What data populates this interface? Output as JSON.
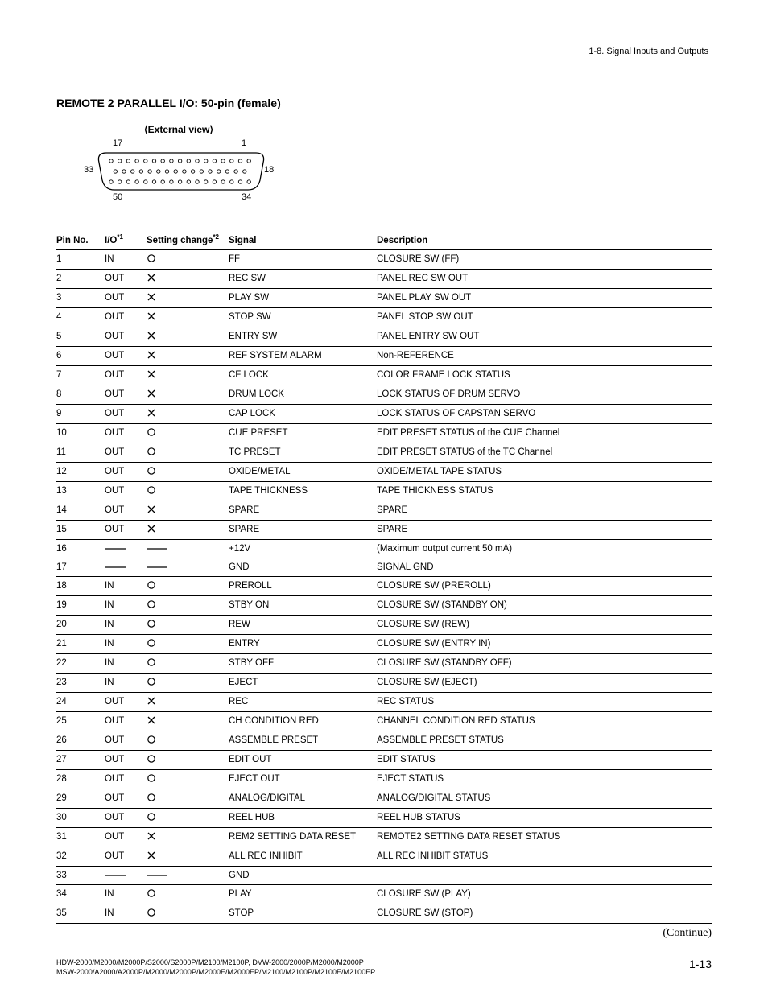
{
  "header": {
    "section": "1-8. Signal Inputs and Outputs"
  },
  "title": "REMOTE 2 PARALLEL I/O: 50-pin (female)",
  "diagram": {
    "label": "External view",
    "pin_labels": {
      "tl": "17",
      "tr": "1",
      "ml": "33",
      "mr": "18",
      "bl": "50",
      "br": "34"
    }
  },
  "table": {
    "columns": {
      "pin": "Pin No.",
      "io": "I/O",
      "io_sup": "*1",
      "sc": "Setting change",
      "sc_sup": "*2",
      "signal": "Signal",
      "desc": "Description"
    },
    "marks": {
      "circle": "a",
      "cross": "x",
      "dash": "—"
    },
    "rows": [
      {
        "pin": "1",
        "io": "IN",
        "sc": "a",
        "signal": "FF",
        "desc": "CLOSURE SW (FF)"
      },
      {
        "pin": "2",
        "io": "OUT",
        "sc": "x",
        "signal": "REC SW",
        "desc": "PANEL REC SW OUT"
      },
      {
        "pin": "3",
        "io": "OUT",
        "sc": "x",
        "signal": "PLAY SW",
        "desc": "PANEL PLAY SW OUT"
      },
      {
        "pin": "4",
        "io": "OUT",
        "sc": "x",
        "signal": "STOP SW",
        "desc": "PANEL STOP SW OUT"
      },
      {
        "pin": "5",
        "io": "OUT",
        "sc": "x",
        "signal": "ENTRY SW",
        "desc": "PANEL ENTRY SW OUT"
      },
      {
        "pin": "6",
        "io": "OUT",
        "sc": "x",
        "signal": "REF SYSTEM ALARM",
        "desc": "Non-REFERENCE"
      },
      {
        "pin": "7",
        "io": "OUT",
        "sc": "x",
        "signal": "CF LOCK",
        "desc": "COLOR FRAME LOCK STATUS"
      },
      {
        "pin": "8",
        "io": "OUT",
        "sc": "x",
        "signal": "DRUM LOCK",
        "desc": "LOCK STATUS OF DRUM SERVO"
      },
      {
        "pin": "9",
        "io": "OUT",
        "sc": "x",
        "signal": "CAP LOCK",
        "desc": "LOCK STATUS OF CAPSTAN SERVO"
      },
      {
        "pin": "10",
        "io": "OUT",
        "sc": "a",
        "signal": "CUE PRESET",
        "desc": "EDIT PRESET STATUS of the CUE Channel"
      },
      {
        "pin": "11",
        "io": "OUT",
        "sc": "a",
        "signal": "TC PRESET",
        "desc": "EDIT PRESET STATUS of the TC Channel"
      },
      {
        "pin": "12",
        "io": "OUT",
        "sc": "a",
        "signal": "OXIDE/METAL",
        "desc": "OXIDE/METAL TAPE STATUS"
      },
      {
        "pin": "13",
        "io": "OUT",
        "sc": "a",
        "signal": "TAPE THICKNESS",
        "desc": "TAPE THICKNESS STATUS"
      },
      {
        "pin": "14",
        "io": "OUT",
        "sc": "x",
        "signal": "SPARE",
        "desc": "SPARE"
      },
      {
        "pin": "15",
        "io": "OUT",
        "sc": "x",
        "signal": "SPARE",
        "desc": "SPARE"
      },
      {
        "pin": "16",
        "io": "—",
        "sc": "—",
        "signal": "+12V",
        "desc": "(Maximum output current 50 mA)"
      },
      {
        "pin": "17",
        "io": "—",
        "sc": "—",
        "signal": "GND",
        "desc": "SIGNAL GND"
      },
      {
        "pin": "18",
        "io": "IN",
        "sc": "a",
        "signal": "PREROLL",
        "desc": "CLOSURE SW (PREROLL)"
      },
      {
        "pin": "19",
        "io": "IN",
        "sc": "a",
        "signal": "STBY ON",
        "desc": "CLOSURE SW (STANDBY ON)"
      },
      {
        "pin": "20",
        "io": "IN",
        "sc": "a",
        "signal": "REW",
        "desc": "CLOSURE SW (REW)"
      },
      {
        "pin": "21",
        "io": "IN",
        "sc": "a",
        "signal": "ENTRY",
        "desc": "CLOSURE SW (ENTRY IN)"
      },
      {
        "pin": "22",
        "io": "IN",
        "sc": "a",
        "signal": "STBY OFF",
        "desc": "CLOSURE SW (STANDBY OFF)"
      },
      {
        "pin": "23",
        "io": "IN",
        "sc": "a",
        "signal": "EJECT",
        "desc": "CLOSURE SW (EJECT)"
      },
      {
        "pin": "24",
        "io": "OUT",
        "sc": "x",
        "signal": "REC",
        "desc": "REC STATUS"
      },
      {
        "pin": "25",
        "io": "OUT",
        "sc": "x",
        "signal": "CH CONDITION RED",
        "desc": "CHANNEL CONDITION RED STATUS"
      },
      {
        "pin": "26",
        "io": "OUT",
        "sc": "a",
        "signal": "ASSEMBLE PRESET",
        "desc": "ASSEMBLE PRESET STATUS"
      },
      {
        "pin": "27",
        "io": "OUT",
        "sc": "a",
        "signal": "EDIT OUT",
        "desc": "EDIT STATUS"
      },
      {
        "pin": "28",
        "io": "OUT",
        "sc": "a",
        "signal": "EJECT OUT",
        "desc": "EJECT STATUS"
      },
      {
        "pin": "29",
        "io": "OUT",
        "sc": "a",
        "signal": "ANALOG/DIGITAL",
        "desc": "ANALOG/DIGITAL STATUS"
      },
      {
        "pin": "30",
        "io": "OUT",
        "sc": "a",
        "signal": "REEL HUB",
        "desc": "REEL HUB STATUS"
      },
      {
        "pin": "31",
        "io": "OUT",
        "sc": "x",
        "signal": "REM2 SETTING DATA RESET",
        "desc": "REMOTE2 SETTING DATA RESET STATUS"
      },
      {
        "pin": "32",
        "io": "OUT",
        "sc": "x",
        "signal": "ALL REC INHIBIT",
        "desc": "ALL REC INHIBIT STATUS"
      },
      {
        "pin": "33",
        "io": "—",
        "sc": "—",
        "signal": "GND",
        "desc": ""
      },
      {
        "pin": "34",
        "io": "IN",
        "sc": "a",
        "signal": "PLAY",
        "desc": "CLOSURE SW (PLAY)"
      },
      {
        "pin": "35",
        "io": "IN",
        "sc": "a",
        "signal": "STOP",
        "desc": "CLOSURE SW (STOP)"
      }
    ]
  },
  "continue": "(Continue)",
  "footer": {
    "line1": "HDW-2000/M2000/M2000P/S2000/S2000P/M2100/M2100P, DVW-2000/2000P/M2000/M2000P",
    "line2": "MSW-2000/A2000/A2000P/M2000/M2000P/M2000E/M2000EP/M2100/M2100P/M2100E/M2100EP",
    "page": "1-13"
  }
}
